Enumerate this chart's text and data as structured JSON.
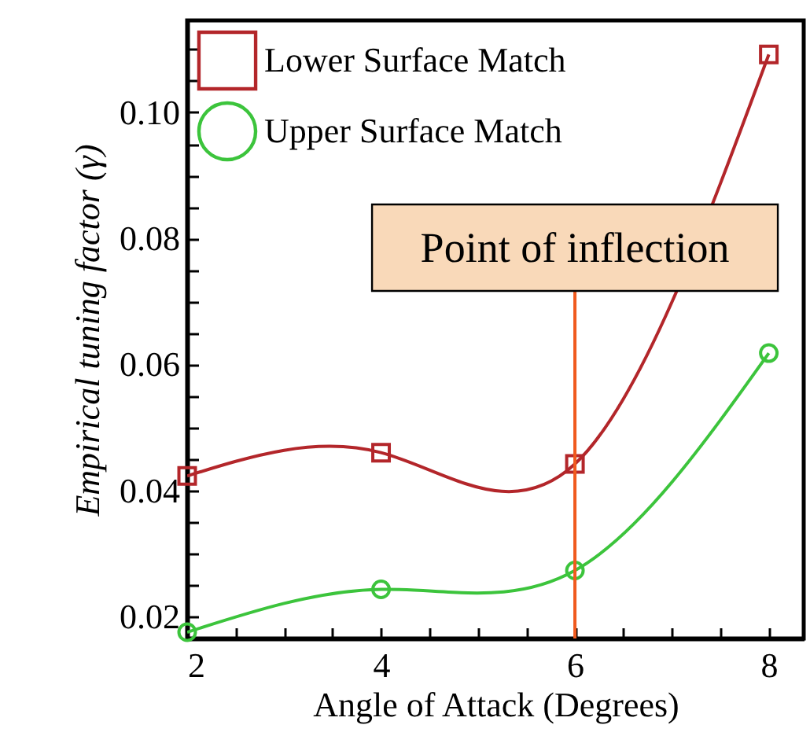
{
  "chart_data": {
    "type": "line",
    "xlabel": "Angle of Attack (Degrees)",
    "ylabel": "Empirical tuning factor (γ)",
    "x": [
      2,
      4,
      6,
      8
    ],
    "series": [
      {
        "name": "Lower Surface Match",
        "color": "#b3262a",
        "marker": "square",
        "values": [
          0.0423,
          0.046,
          0.0442,
          0.1092
        ]
      },
      {
        "name": "Upper Surface Match",
        "color": "#3cc43c",
        "marker": "circle",
        "values": [
          0.0175,
          0.0243,
          0.0273,
          0.0618
        ]
      }
    ],
    "xlim": [
      2,
      8.36
    ],
    "xticks": [
      2,
      {
        "value": 2.5,
        "label": null
      },
      {
        "value": 3,
        "label": null
      },
      {
        "value": 3.5,
        "label": null
      },
      4,
      {
        "value": 4.5,
        "label": null
      },
      {
        "value": 5,
        "label": null
      },
      {
        "value": 5.5,
        "label": null
      },
      6,
      {
        "value": 6.5,
        "label": null
      },
      {
        "value": 7,
        "label": null
      },
      {
        "value": 7.5,
        "label": null
      },
      8
    ],
    "ylim": [
      0.0165,
      0.1146
    ],
    "yticks": [
      {
        "value": 0.02,
        "label": "0.02"
      },
      {
        "value": 0.025,
        "label": null
      },
      {
        "value": 0.03,
        "label": null
      },
      {
        "value": 0.035,
        "label": null
      },
      {
        "value": 0.04,
        "label": "0.04"
      },
      {
        "value": 0.045,
        "label": null
      },
      {
        "value": 0.05,
        "label": null
      },
      {
        "value": 0.055,
        "label": null
      },
      {
        "value": 0.06,
        "label": "0.06"
      },
      {
        "value": 0.065,
        "label": null
      },
      {
        "value": 0.07,
        "label": null
      },
      {
        "value": 0.075,
        "label": null
      },
      {
        "value": 0.08,
        "label": "0.08"
      },
      {
        "value": 0.085,
        "label": null
      },
      {
        "value": 0.09,
        "label": null
      },
      {
        "value": 0.095,
        "label": null
      },
      {
        "value": 0.1,
        "label": "0.10"
      },
      {
        "value": 0.105,
        "label": null
      },
      {
        "value": 0.11,
        "label": null
      }
    ],
    "ref_lines": [
      {
        "axis": "x",
        "value": 6,
        "label": "Point of inflection",
        "color": "#f05a1e"
      }
    ],
    "legend": "top left",
    "grid": false,
    "line_style": "solid"
  }
}
